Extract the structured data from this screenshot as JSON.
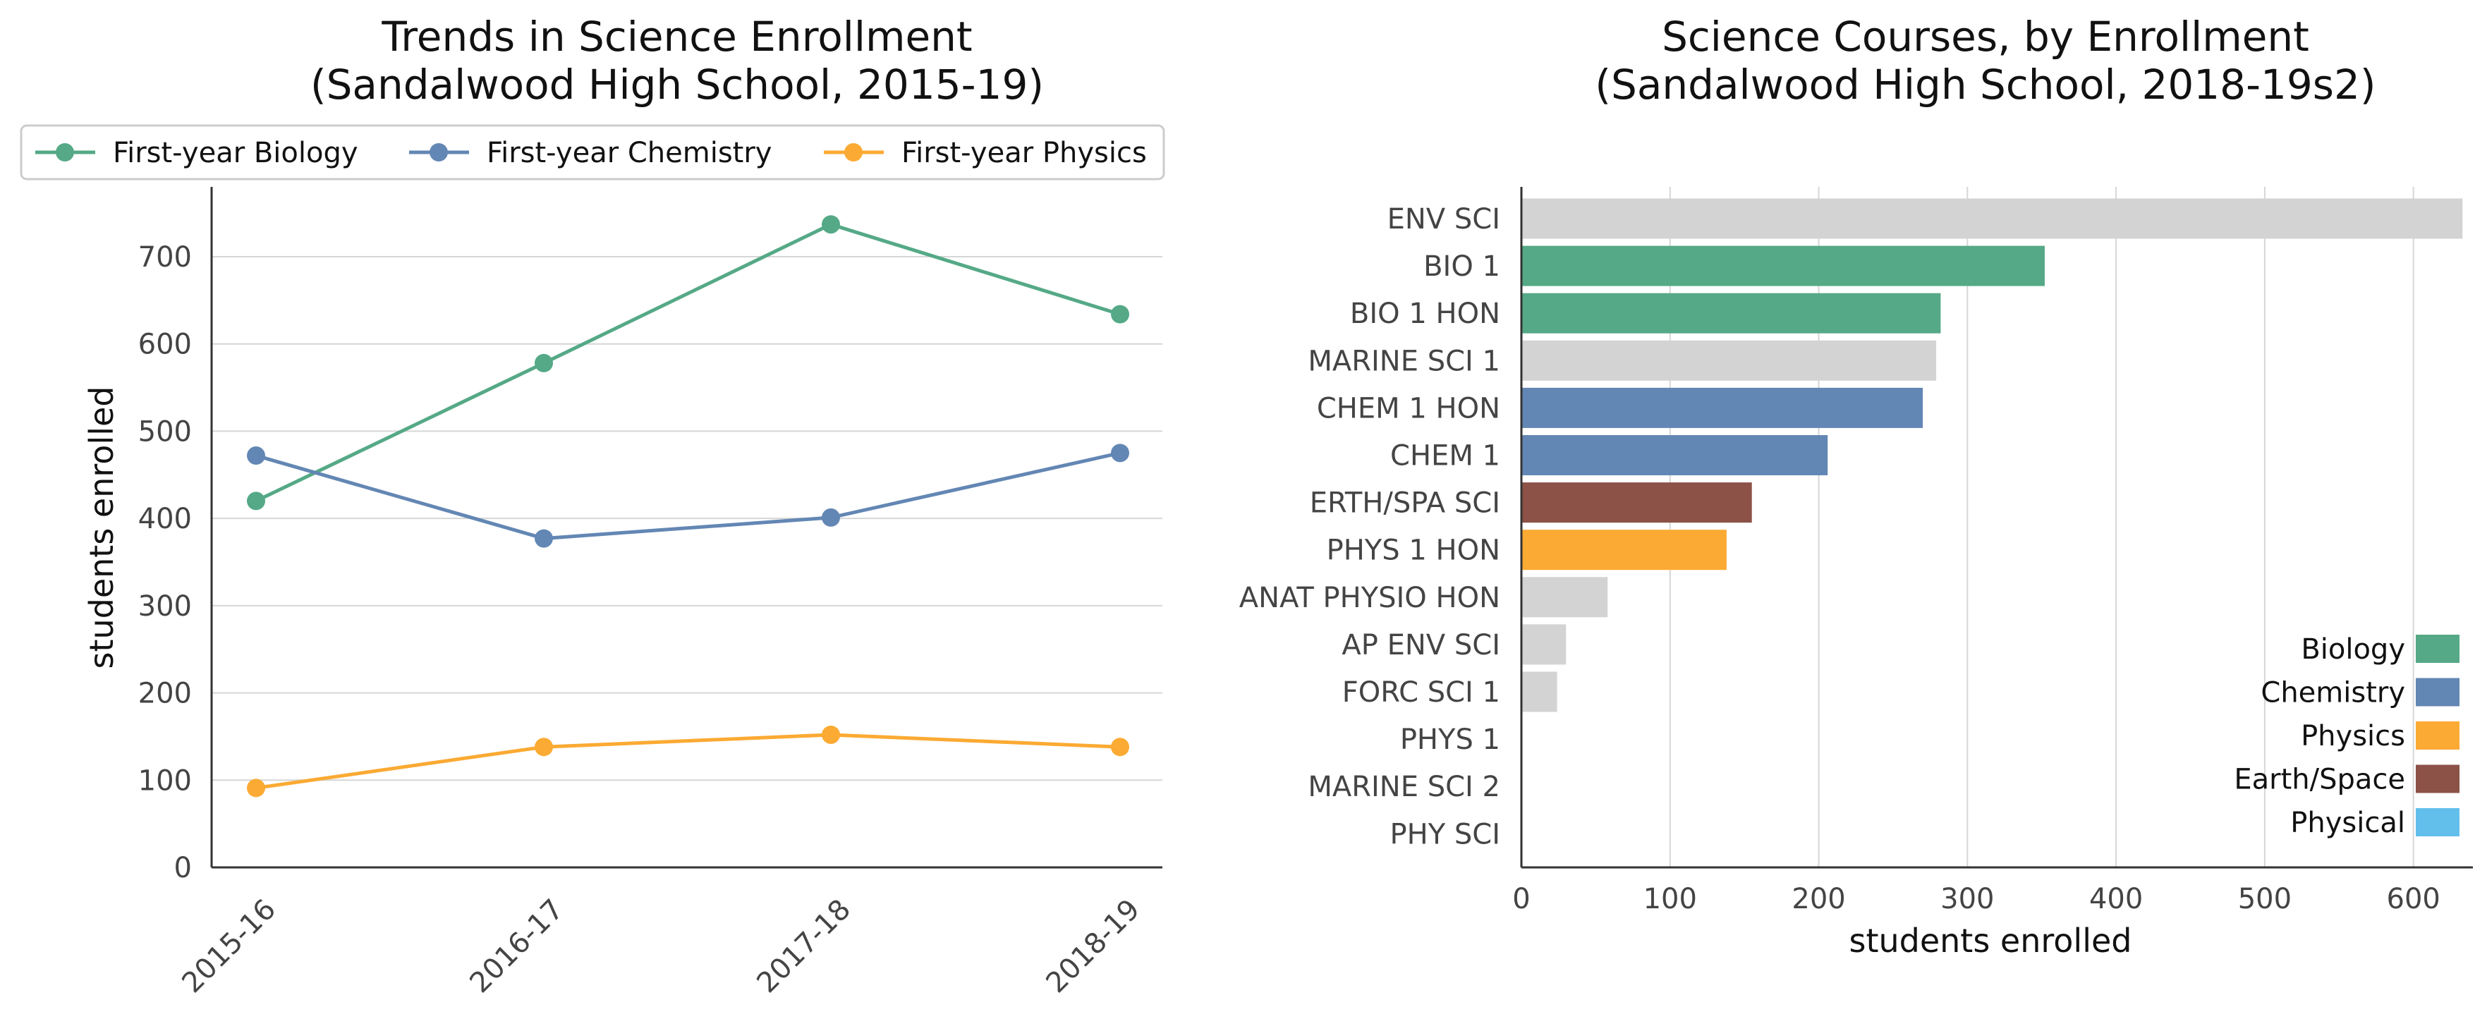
{
  "chart_data": [
    {
      "type": "line",
      "title": [
        "Trends in Science Enrollment",
        "(Sandalwood High School, 2015-19)"
      ],
      "xlabel": "",
      "ylabel": "students enrolled",
      "categories": [
        "2015-16",
        "2016-17",
        "2017-18",
        "2018-19"
      ],
      "series": [
        {
          "name": "First-year Biology",
          "color": "#55a986",
          "values": [
            420,
            578,
            737,
            634
          ]
        },
        {
          "name": "First-year Chemistry",
          "color": "#6387b4",
          "values": [
            472,
            377,
            401,
            475
          ]
        },
        {
          "name": "First-year Physics",
          "color": "#fbaa33",
          "values": [
            91,
            138,
            152,
            138
          ]
        }
      ],
      "ylim": [
        0,
        780
      ],
      "yticks": [
        0,
        100,
        200,
        300,
        400,
        500,
        600,
        700
      ],
      "grid": "y",
      "legend": "top"
    },
    {
      "type": "bar",
      "orientation": "horizontal",
      "title": [
        "Science Courses, by Enrollment",
        "(Sandalwood High School, 2018-19s2)"
      ],
      "xlabel": "students enrolled",
      "ylabel": "",
      "categories": [
        "ENV SCI",
        "BIO 1",
        "BIO 1 HON",
        "MARINE SCI 1",
        "CHEM 1 HON",
        "CHEM 1",
        "ERTH/SPA SCI",
        "PHYS 1 HON",
        "ANAT PHYSIO HON",
        "AP ENV SCI",
        "FORC SCI 1",
        "PHYS 1",
        "MARINE SCI 2",
        "PHY SCI"
      ],
      "values": [
        633,
        352,
        282,
        279,
        270,
        206,
        155,
        138,
        58,
        30,
        24,
        0,
        0,
        0
      ],
      "bar_groups": [
        "Other",
        "Biology",
        "Biology",
        "Other",
        "Chemistry",
        "Chemistry",
        "Earth/Space",
        "Physics",
        "Other",
        "Other",
        "Other",
        "Physics",
        "Other",
        "Physical"
      ],
      "group_colors": {
        "Biology": "#55a986",
        "Chemistry": "#6387b4",
        "Physics": "#fbaa33",
        "Earth/Space": "#8c5147",
        "Physical": "#62bfeb",
        "Other": "#d3d3d3"
      },
      "legend_entries": [
        "Biology",
        "Chemistry",
        "Physics",
        "Earth/Space",
        "Physical"
      ],
      "xlim": [
        0,
        640
      ],
      "xticks": [
        0,
        100,
        200,
        300,
        400,
        500,
        600
      ],
      "grid": "x",
      "legend": "bottom-right"
    }
  ]
}
